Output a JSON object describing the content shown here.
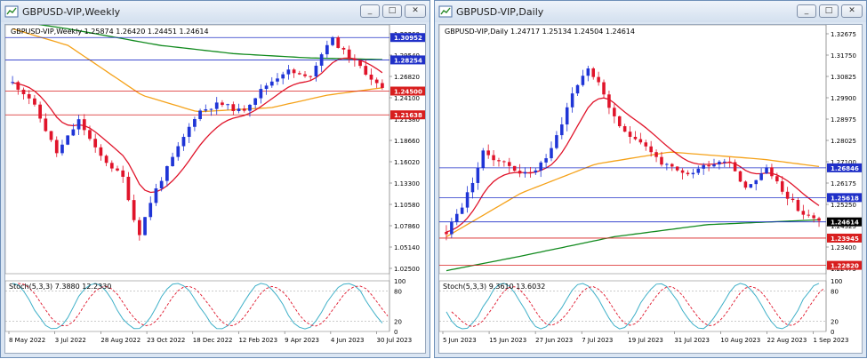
{
  "left": {
    "window_title": "GBPUSD-VIP,Weekly",
    "info": "GBPUSD-VIP,Weekly  1.25874 1.26420 1.24451 1.24614",
    "stoch_label": "Stoch(5,3,3) 7.3880 12.2330",
    "price_ticks": [
      "1.32260",
      "1.29540",
      "1.26820",
      "1.24100",
      "1.21380",
      "1.18660",
      "1.16020",
      "1.13300",
      "1.10580",
      "1.07860",
      "1.05140",
      "1.02500"
    ],
    "hline_labels": [
      "1.30952",
      "1.28254",
      "1.24500",
      "1.21638"
    ],
    "stoch_ticks": [
      "100",
      "80",
      "20",
      "0"
    ],
    "date_ticks": [
      "8 May 2022",
      "3 Jul 2022",
      "28 Aug 2022",
      "23 Oct 2022",
      "18 Dec 2022",
      "12 Feb 2023",
      "9 Apr 2023",
      "4 Jun 2023",
      "30 Jul 2023"
    ]
  },
  "right": {
    "window_title": "GBPUSD-VIP,Daily",
    "info": "GBPUSD-VIP,Daily  1.24717 1.25134 1.24504 1.24614",
    "stoch_label": "Stoch(5,3,3) 9.3610 13.6032",
    "price_ticks": [
      "1.32675",
      "1.31750",
      "1.30825",
      "1.29900",
      "1.28975",
      "1.28025",
      "1.27100",
      "1.26175",
      "1.25250",
      "1.24325",
      "1.23400",
      "1.22475"
    ],
    "hline_labels": [
      "1.26846",
      "1.25618",
      "1.24614",
      "1.23945",
      "1.22820"
    ],
    "stoch_ticks": [
      "100",
      "80",
      "20",
      "0"
    ],
    "date_ticks": [
      "5 Jun 2023",
      "15 Jun 2023",
      "27 Jun 2023",
      "7 Jul 2023",
      "19 Jul 2023",
      "31 Jul 2023",
      "10 Aug 2023",
      "22 Aug 2023",
      "1 Sep 2023"
    ]
  },
  "buttons": {
    "minimize": "_",
    "restore": "□",
    "close": "✕"
  },
  "colors": {
    "bull": "#1f35d6",
    "bear": "#e0142a",
    "ma_red": "#e0142a",
    "ma_orange": "#f5a21a",
    "ma_green": "#118a1e",
    "hline_blue": "#2030c8",
    "hline_red": "#d81e1e",
    "stoch_main": "#3fb0c8",
    "stoch_signal": "#e0142a"
  }
}
